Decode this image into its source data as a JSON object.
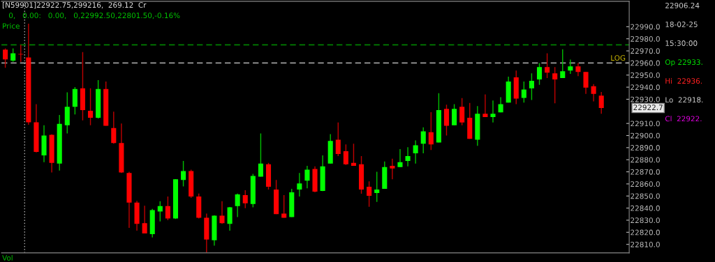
{
  "chart_data": {
    "type": "candlestick",
    "title": "[N59901]22922.75,299216,  269.12  Cr",
    "subtitle": "0,   0.00:   0.00,   0,22992.50,22801.50,-0.16%",
    "annotations": [
      "Price",
      "LOG",
      "Vol",
      "22906.24",
      "18-02-25",
      "15:30:00",
      "Op 22933.",
      "Hi  22936.",
      "Lo  22918.",
      "Cl  22922.",
      "22922.7"
    ],
    "categories": [
      null,
      null,
      null,
      null,
      null,
      null,
      null,
      null,
      null,
      null,
      null,
      null,
      null,
      null,
      null,
      null,
      null,
      null,
      null,
      null,
      null,
      null,
      null,
      null,
      null,
      null,
      null,
      null,
      null,
      null,
      null,
      null,
      null,
      null,
      null,
      null,
      null,
      null,
      null,
      null,
      null,
      null,
      null,
      null,
      null,
      null,
      null,
      null,
      null,
      null,
      null,
      null,
      null,
      null,
      null,
      null,
      null,
      null,
      null,
      null,
      null,
      null,
      null,
      null,
      null,
      null,
      null,
      null,
      null,
      null,
      null,
      null,
      null,
      null,
      null,
      null,
      null,
      null
    ],
    "ohlc": [
      [
        22971,
        22972,
        22956,
        22963
      ],
      [
        22962,
        22972,
        22961,
        22968
      ],
      [
        22967.4,
        22975,
        22961,
        22967
      ],
      [
        22964.5,
        22992.5,
        22909,
        22911
      ],
      [
        22911,
        22926,
        22886,
        22886.4
      ],
      [
        22883.6,
        22908.5,
        22878,
        22900
      ],
      [
        22900.6,
        22901,
        22869.5,
        22877.4
      ],
      [
        22876.8,
        22917,
        22871,
        22909.6
      ],
      [
        22908.5,
        22935.7,
        22901.7,
        22923.8
      ],
      [
        22923.8,
        22940,
        22917.5,
        22938.5
      ],
      [
        22939,
        22969,
        22912.5,
        22921
      ],
      [
        22920.4,
        22939,
        22908.5,
        22914.7
      ],
      [
        22914.7,
        22945.8,
        22914,
        22938.5
      ],
      [
        22938.5,
        22944.7,
        22908,
        22908
      ],
      [
        22906.2,
        22919.8,
        22893.2,
        22893.8
      ],
      [
        22893.8,
        22910,
        22869,
        22869.4
      ],
      [
        22869,
        22870,
        22823.6,
        22844.5
      ],
      [
        22844.5,
        22846,
        22821.3,
        22827
      ],
      [
        22827.6,
        22842,
        22819,
        22819
      ],
      [
        22818.5,
        22839.4,
        22815.7,
        22838.3
      ],
      [
        22837.2,
        22845.7,
        22829,
        22841.7
      ],
      [
        22841.7,
        22849.6,
        22830,
        22831.5
      ],
      [
        22831.5,
        22864,
        22831,
        22863.8
      ],
      [
        22863.2,
        22879,
        22858,
        22870.6
      ],
      [
        22870.6,
        22871.7,
        22848.5,
        22849.6
      ],
      [
        22849.6,
        22852,
        22831.5,
        22832
      ],
      [
        22832,
        22835.5,
        22803,
        22814
      ],
      [
        22813.4,
        22834,
        22809,
        22833.8
      ],
      [
        22833.8,
        22845.7,
        22827,
        22827.6
      ],
      [
        22827,
        22841,
        22821.3,
        22840.6
      ],
      [
        22841.7,
        22852,
        22832.6,
        22851.3
      ],
      [
        22850.8,
        22854.7,
        22840,
        22844
      ],
      [
        22843.4,
        22868.3,
        22840.6,
        22866.6
      ],
      [
        22866,
        22901.7,
        22866,
        22876.8
      ],
      [
        22876.2,
        22877.4,
        22855.3,
        22857.6
      ],
      [
        22855.3,
        22863.2,
        22835,
        22835
      ],
      [
        22835.5,
        22850.8,
        22832,
        22832
      ],
      [
        22832.6,
        22855.9,
        22832.6,
        22853
      ],
      [
        22855.3,
        22869,
        22849.6,
        22860.4
      ],
      [
        22862.7,
        22875,
        22856.4,
        22871.7
      ],
      [
        22872.3,
        22874.5,
        22853,
        22853.6
      ],
      [
        22854.2,
        22883.6,
        22854,
        22874.5
      ],
      [
        22876.8,
        22901.1,
        22876.8,
        22895.5
      ],
      [
        22896.6,
        22910.8,
        22883,
        22884.7
      ],
      [
        22887,
        22892.6,
        22875.7,
        22876.2
      ],
      [
        22877.4,
        22893.2,
        22875,
        22875
      ],
      [
        22876.2,
        22883,
        22851.9,
        22855.3
      ],
      [
        22857.6,
        22862.1,
        22841.1,
        22850.2
      ],
      [
        22852.5,
        22870,
        22845.1,
        22855.3
      ],
      [
        22855.9,
        22878.5,
        22855.9,
        22874
      ],
      [
        22875,
        22880.8,
        22863.8,
        22872.8
      ],
      [
        22874,
        22888.7,
        22874,
        22878
      ],
      [
        22879,
        22890.4,
        22874.5,
        22883
      ],
      [
        22885.3,
        22896,
        22876.8,
        22892
      ],
      [
        22893.2,
        22906.8,
        22885.3,
        22903.4
      ],
      [
        22902.8,
        22919.3,
        22888,
        22892.6
      ],
      [
        22894.3,
        22935,
        22894.3,
        22921
      ],
      [
        22922,
        22925.5,
        22900,
        22908
      ],
      [
        22908.5,
        22926,
        22908.5,
        22922
      ],
      [
        22923.8,
        22931,
        22908.5,
        22910.8
      ],
      [
        22914.7,
        22927,
        22897.2,
        22897.2
      ],
      [
        22896.6,
        22924.3,
        22891.5,
        22918
      ],
      [
        22918,
        22934,
        22915.3,
        22915.3
      ],
      [
        22915.3,
        22928.9,
        22910.8,
        22918
      ],
      [
        22919.2,
        22931.7,
        22919.2,
        22926
      ],
      [
        22927.2,
        22948.7,
        22927.2,
        22944.7
      ],
      [
        22948.1,
        22953.8,
        22926,
        22930.6
      ],
      [
        22931.1,
        22944.7,
        22927.2,
        22938
      ],
      [
        22939,
        22951.5,
        22929.4,
        22945.3
      ],
      [
        22946.4,
        22960,
        22941.9,
        22956.6
      ],
      [
        22956.6,
        22968,
        22947.5,
        22952
      ],
      [
        22951.5,
        22956.6,
        22926.6,
        22946.4
      ],
      [
        22947.5,
        22971.3,
        22947.5,
        22953.2
      ],
      [
        22953.8,
        22962.8,
        22951,
        22957.2
      ],
      [
        22957.2,
        22960,
        22949.2,
        22952.6
      ],
      [
        22952.6,
        22952.6,
        22934.5,
        22939.6
      ],
      [
        22940.8,
        22942.5,
        22928.3,
        22934.5
      ],
      [
        22933,
        22936,
        22918,
        22922.75
      ]
    ],
    "ylim": [
      22803,
      23011
    ],
    "yticks": [
      {
        "value": 22810,
        "label": "22810.0"
      },
      {
        "value": 22820,
        "label": "22820.0"
      },
      {
        "value": 22830,
        "label": "22830.0"
      },
      {
        "value": 22840,
        "label": "22840.0"
      },
      {
        "value": 22850,
        "label": "22850.0"
      },
      {
        "value": 22860,
        "label": "22860.0"
      },
      {
        "value": 22870,
        "label": "22870.0"
      },
      {
        "value": 22880,
        "label": "22880.0"
      },
      {
        "value": 22890,
        "label": "22890.0"
      },
      {
        "value": 22900,
        "label": "22900.0"
      },
      {
        "value": 22910,
        "label": "22910.0"
      },
      {
        "value": 22930,
        "label": "22930.0"
      },
      {
        "value": 22940,
        "label": "22940.0"
      },
      {
        "value": 22950,
        "label": "22950.0"
      },
      {
        "value": 22960,
        "label": "22960.0"
      },
      {
        "value": 22970,
        "label": "22970.0"
      },
      {
        "value": 22980,
        "label": "22980.0"
      },
      {
        "value": 22990,
        "label": "22990.0"
      }
    ],
    "tick_labels": "y",
    "grid": false,
    "legend": false,
    "ref_lines": [
      {
        "axis": "y",
        "value": 22975,
        "color": "#008000",
        "line_style": "dashed"
      },
      {
        "axis": "y",
        "value": 22960,
        "color": "#a0a0a0",
        "line_style": "dashed"
      }
    ]
  }
}
